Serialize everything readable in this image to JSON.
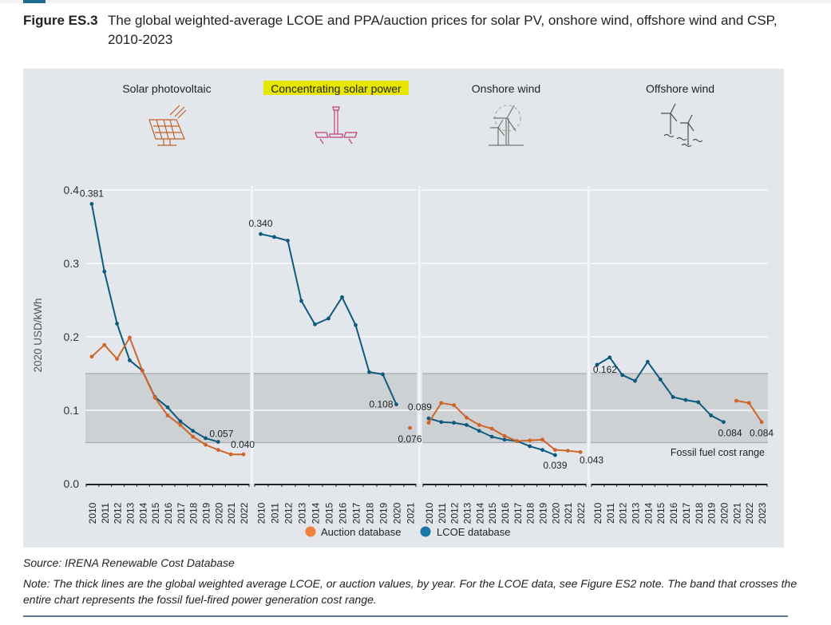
{
  "figure": {
    "label": "Figure ES.3",
    "title": "The global weighted-average LCOE and PPA/auction prices for solar PV, onshore wind, offshore wind and CSP, 2010-2023"
  },
  "source": "Source: IRENA Renewable Cost Database",
  "note": "Note: The thick lines are the global weighted average LCOE, or auction values, by year. For the LCOE data, see Figure ES2 note. The band that crosses the entire chart represents the fossil fuel-fired power generation cost range.",
  "colors": {
    "lcoe": "#0e5a7e",
    "auction": "#d0652a",
    "legend_lcoe": "#1a78a8",
    "legend_auction": "#f07f3c",
    "band": "#cdd1d4",
    "highlight": "#e6e600"
  },
  "chart_data": {
    "type": "line",
    "title": "",
    "ylabel": "2020 USD/kWh",
    "ylim": [
      0,
      0.4
    ],
    "yticks": [
      "0.0",
      "0.1",
      "0.2",
      "0.3",
      "0.4"
    ],
    "grid": true,
    "legend": {
      "placement": "bottom-center",
      "items": [
        {
          "name": "Auction database",
          "color": "#f07f3c"
        },
        {
          "name": "LCOE database",
          "color": "#1a78a8"
        }
      ]
    },
    "fossil_band": {
      "label": "Fossil fuel cost range",
      "low": 0.056,
      "high": 0.15
    },
    "panels": [
      {
        "name": "Solar photovoltaic",
        "icon": "solar-panel-icon",
        "highlighted": false,
        "years": [
          "2010",
          "2011",
          "2012",
          "2013",
          "2014",
          "2015",
          "2016",
          "2017",
          "2018",
          "2019",
          "2020",
          "2021",
          "2022"
        ],
        "series": [
          {
            "name": "LCOE database",
            "values": [
              0.381,
              0.289,
              0.218,
              0.168,
              0.154,
              0.118,
              0.104,
              0.085,
              0.072,
              0.062,
              0.057,
              null,
              null
            ]
          },
          {
            "name": "Auction database",
            "values": [
              0.173,
              0.189,
              0.17,
              0.199,
              0.154,
              0.117,
              0.093,
              0.08,
              0.064,
              0.053,
              0.046,
              0.04,
              0.04
            ]
          }
        ],
        "annotations": [
          {
            "series": "LCOE database",
            "year": "2010",
            "text": "0.381"
          },
          {
            "series": "LCOE database",
            "year": "2020",
            "text": "0.057"
          },
          {
            "series": "Auction database",
            "year": "2022",
            "text": "0.040"
          }
        ]
      },
      {
        "name": "Concentrating solar power",
        "icon": "csp-tower-icon",
        "highlighted": true,
        "years": [
          "2010",
          "2011",
          "2012",
          "2013",
          "2014",
          "2015",
          "2016",
          "2017",
          "2018",
          "2019",
          "2020",
          "2021"
        ],
        "series": [
          {
            "name": "LCOE database",
            "values": [
              0.34,
              0.336,
              0.331,
              0.249,
              0.217,
              0.225,
              0.254,
              0.216,
              0.152,
              0.149,
              0.108,
              null
            ]
          },
          {
            "name": "Auction database",
            "values": [
              null,
              null,
              null,
              null,
              null,
              null,
              null,
              null,
              null,
              null,
              null,
              0.076
            ]
          }
        ],
        "annotations": [
          {
            "series": "LCOE database",
            "year": "2010",
            "text": "0.340"
          },
          {
            "series": "LCOE database",
            "year": "2020",
            "text": "0.108"
          },
          {
            "series": "Auction database",
            "year": "2021",
            "text": "0.076"
          }
        ]
      },
      {
        "name": "Onshore wind",
        "icon": "onshore-wind-turbine-icon",
        "highlighted": false,
        "years": [
          "2010",
          "2011",
          "2012",
          "2013",
          "2014",
          "2015",
          "2016",
          "2017",
          "2018",
          "2019",
          "2020",
          "2021",
          "2022"
        ],
        "series": [
          {
            "name": "LCOE database",
            "values": [
              0.089,
              0.084,
              0.083,
              0.08,
              0.072,
              0.064,
              0.06,
              0.058,
              0.051,
              0.046,
              0.039,
              null,
              null
            ]
          },
          {
            "name": "Auction database",
            "values": [
              0.083,
              0.11,
              0.107,
              0.09,
              0.08,
              0.075,
              0.065,
              0.058,
              0.059,
              0.06,
              0.046,
              0.045,
              0.043
            ]
          }
        ],
        "annotations": [
          {
            "series": "LCOE database",
            "year": "2010",
            "text": "0.089"
          },
          {
            "series": "LCOE database",
            "year": "2020",
            "text": "0.039"
          },
          {
            "series": "Auction database",
            "year": "2022",
            "text": "0.043"
          }
        ]
      },
      {
        "name": "Offshore wind",
        "icon": "offshore-wind-turbine-icon",
        "highlighted": false,
        "years": [
          "2010",
          "2011",
          "2012",
          "2013",
          "2014",
          "2015",
          "2016",
          "2017",
          "2018",
          "2019",
          "2020",
          "2021",
          "2022",
          "2023"
        ],
        "series": [
          {
            "name": "LCOE database",
            "values": [
              0.162,
              0.172,
              0.148,
              0.14,
              0.166,
              0.142,
              0.118,
              0.114,
              0.111,
              0.093,
              0.084,
              null,
              null,
              null
            ]
          },
          {
            "name": "Auction database",
            "values": [
              null,
              null,
              null,
              null,
              null,
              null,
              null,
              null,
              null,
              null,
              null,
              0.113,
              0.11,
              0.084
            ]
          }
        ],
        "annotations": [
          {
            "series": "LCOE database",
            "year": "2010",
            "text": "0.162"
          },
          {
            "series": "LCOE database",
            "year": "2020",
            "text": "0.084"
          },
          {
            "series": "Auction database",
            "year": "2023",
            "text": "0.084"
          }
        ]
      }
    ]
  }
}
